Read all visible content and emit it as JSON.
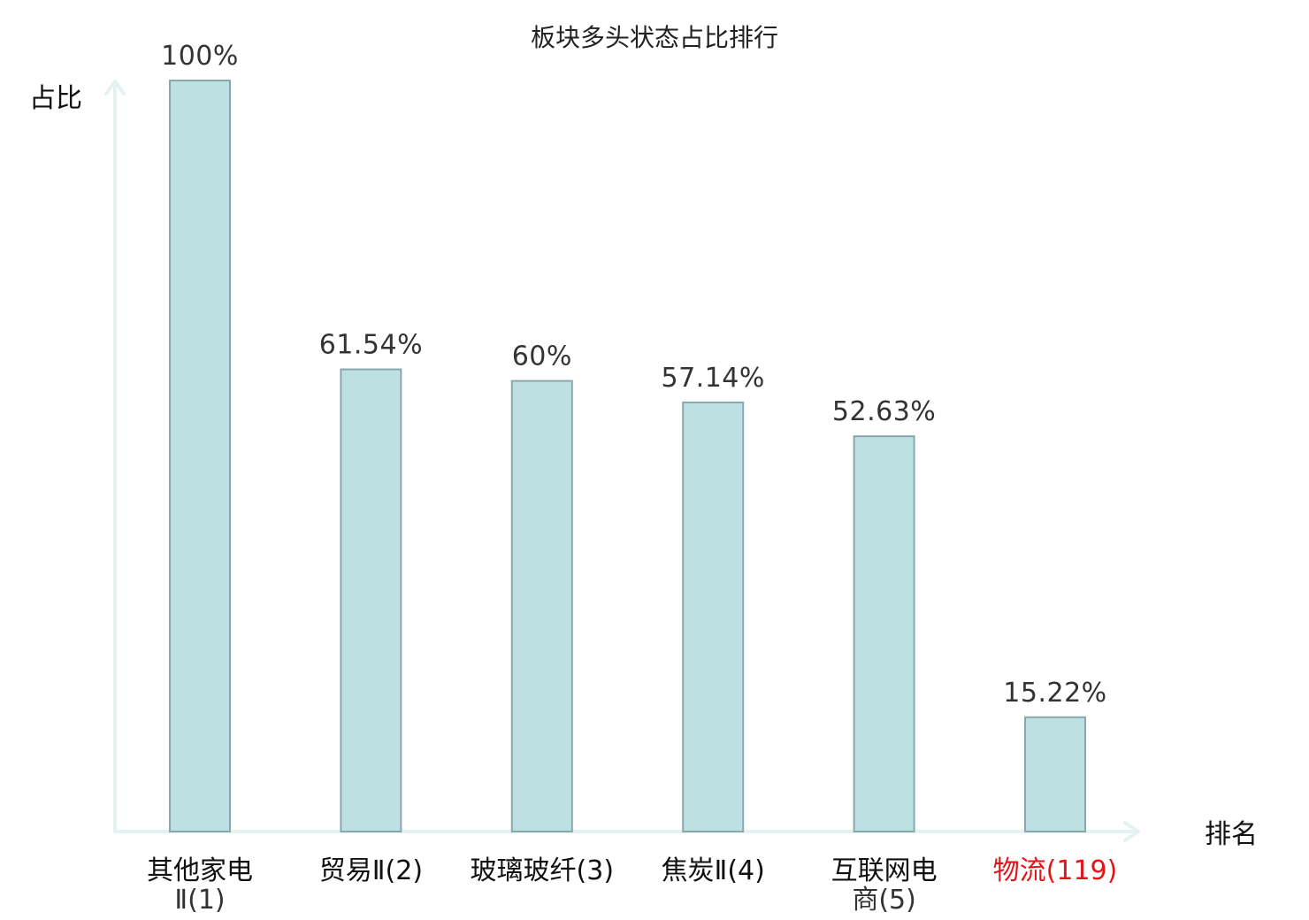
{
  "chart_data": {
    "type": "bar",
    "title": "板块多头状态占比排行",
    "ylabel": "占比",
    "xlabel": "排名",
    "ylim": [
      0,
      100
    ],
    "categories": [
      {
        "lines": [
          "其他家电",
          "Ⅱ(1)"
        ],
        "highlight": false
      },
      {
        "lines": [
          "贸易Ⅱ(2)"
        ],
        "highlight": false
      },
      {
        "lines": [
          "玻璃玻纤(3)"
        ],
        "highlight": false
      },
      {
        "lines": [
          "焦炭Ⅱ(4)"
        ],
        "highlight": false
      },
      {
        "lines": [
          "互联网电",
          "商(5)"
        ],
        "highlight": false
      },
      {
        "lines": [
          "物流(119)"
        ],
        "highlight": true
      }
    ],
    "values": [
      100,
      61.54,
      60,
      57.14,
      52.63,
      15.22
    ],
    "value_labels": [
      "100%",
      "61.54%",
      "60%",
      "57.14%",
      "52.63%",
      "15.22%"
    ],
    "grid": false,
    "legend": "none",
    "colors": {
      "bar_fill": "#bde0e3",
      "bar_stroke": "#8aa8ac",
      "axis": "#e3f3f1",
      "highlight": "#e0161b"
    }
  }
}
